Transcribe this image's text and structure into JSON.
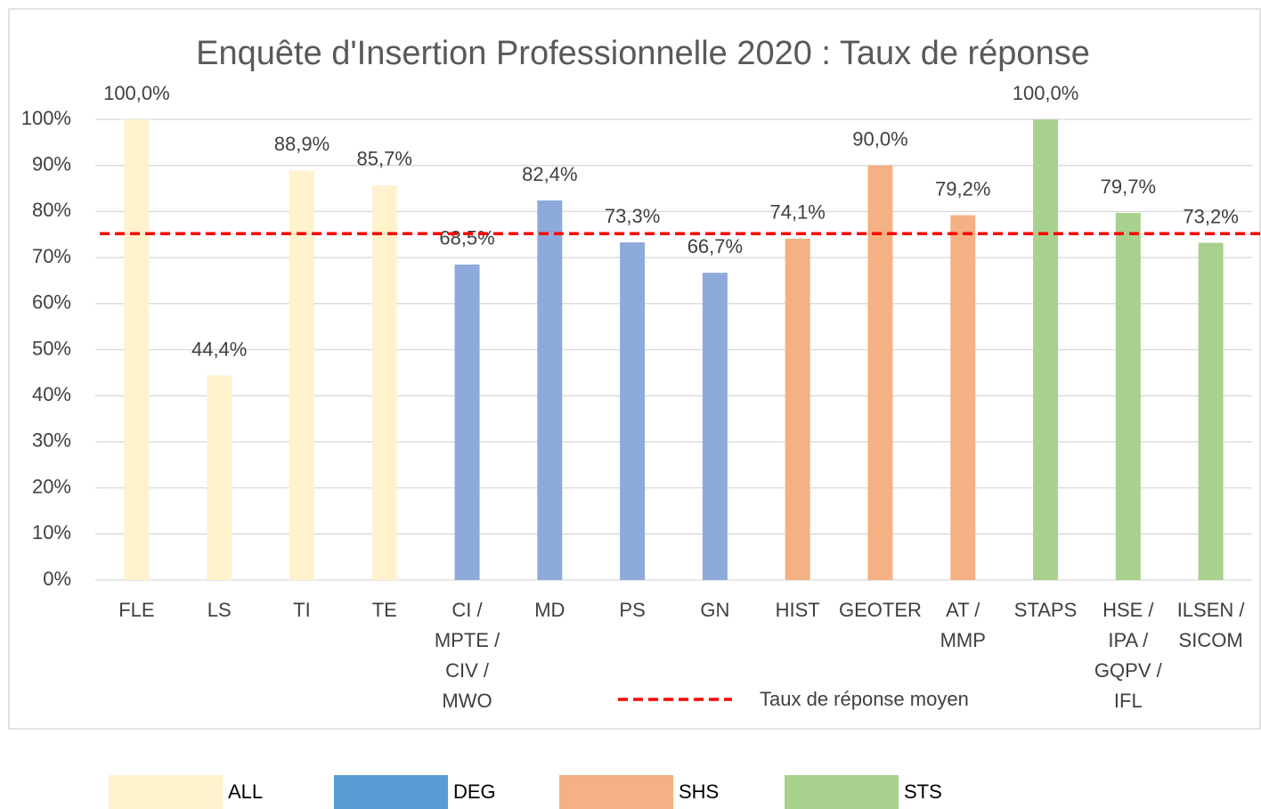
{
  "chart_data": {
    "type": "bar",
    "title": "Enquête d'Insertion Professionnelle 2020 : Taux de réponse",
    "categories": [
      "FLE",
      "LS",
      "TI",
      "TE",
      "CI / MPTE / CIV / MWO",
      "MD",
      "PS",
      "GN",
      "HIST",
      "GEOTER",
      "AT / MMP",
      "STAPS",
      "HSE / IPA / GQPV / IFL",
      "ILSEN / SICOM"
    ],
    "values": [
      100,
      44.4,
      88.9,
      85.7,
      68.5,
      82.4,
      73.3,
      66.7,
      74.1,
      90.0,
      79.2,
      100,
      79.7,
      73.2
    ],
    "value_labels": [
      "100,0%",
      "44,4%",
      "88,9%",
      "85,7%",
      "68,5%",
      "82,4%",
      "73,3%",
      "66,7%",
      "74,1%",
      "90,0%",
      "79,2%",
      "100,0%",
      "79,7%",
      "73,2%"
    ],
    "colors": [
      "#fff2cc",
      "#fff2cc",
      "#fff2cc",
      "#fff2cc",
      "#8eaadb",
      "#8eaadb",
      "#8eaadb",
      "#8eaadb",
      "#f4b183",
      "#f4b183",
      "#f4b183",
      "#a9d18e",
      "#a9d18e",
      "#a9d18e"
    ],
    "ylim": [
      0,
      100
    ],
    "yticks": [
      {
        "value": 0,
        "label": "0%"
      },
      {
        "value": 10,
        "label": "10%"
      },
      {
        "value": 20,
        "label": "20%"
      },
      {
        "value": 30,
        "label": "30%"
      },
      {
        "value": 40,
        "label": "40%"
      },
      {
        "value": 50,
        "label": "50%"
      },
      {
        "value": 60,
        "label": "60%"
      },
      {
        "value": 70,
        "label": "70%"
      },
      {
        "value": 80,
        "label": "80%"
      },
      {
        "value": 90,
        "label": "90%"
      },
      {
        "value": 100,
        "label": "100%"
      }
    ],
    "grid": true,
    "reference_line": {
      "name": "Taux de réponse moyen",
      "value": 75.2,
      "color": "#ff0000"
    },
    "groups": [
      {
        "name": "ALL",
        "color": "#fff2cc"
      },
      {
        "name": "DEG",
        "color": "#5b9bd5"
      },
      {
        "name": "SHS",
        "color": "#f4b183"
      },
      {
        "name": "STS",
        "color": "#a9d18e"
      }
    ]
  }
}
